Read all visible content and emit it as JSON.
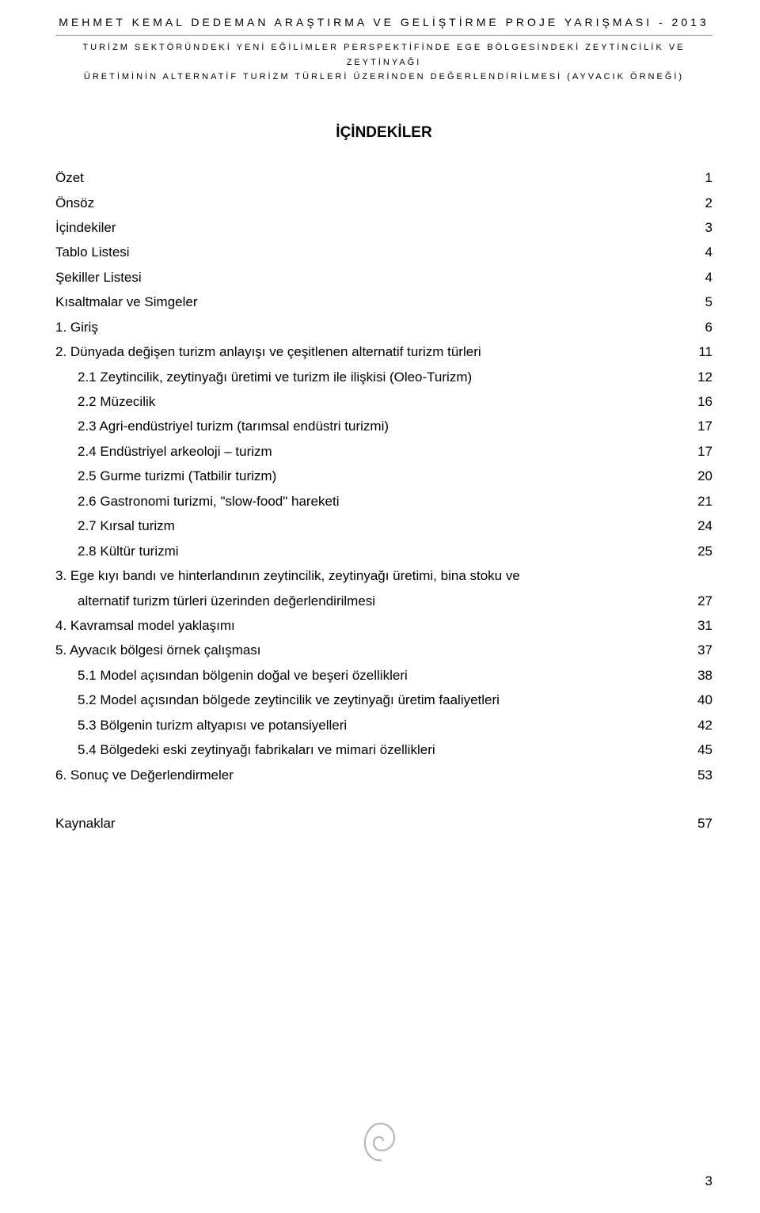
{
  "header": {
    "title": "MEHMET KEMAL DEDEMAN ARAŞTIRMA VE GELİŞTİRME PROJE YARIŞMASI - 2013",
    "subtitle_line1": "TURİZM SEKTÖRÜNDEKİ YENİ EĞİLİMLER PERSPEKTİFİNDE EGE BÖLGESİNDEKİ ZEYTİNCİLİK VE ZEYTİNYAĞI",
    "subtitle_line2": "ÜRETİMİNİN ALTERNATİF TURİZM TÜRLERİ ÜZERİNDEN DEĞERLENDİRİLMESİ (AYVACIK ÖRNEĞİ)"
  },
  "toc_title": "İÇİNDEKİLER",
  "toc": [
    {
      "label": "Özet",
      "page": "1",
      "indent": false
    },
    {
      "label": "Önsöz",
      "page": "2",
      "indent": false
    },
    {
      "label": "İçindekiler",
      "page": "3",
      "indent": false
    },
    {
      "label": "Tablo Listesi",
      "page": "4",
      "indent": false
    },
    {
      "label": "Şekiller Listesi",
      "page": "4",
      "indent": false
    },
    {
      "label": "Kısaltmalar ve Simgeler",
      "page": "5",
      "indent": false
    },
    {
      "label": "1. Giriş",
      "page": "6",
      "indent": false
    },
    {
      "label": "2. Dünyada değişen turizm anlayışı ve çeşitlenen alternatif turizm türleri",
      "page": "11",
      "indent": false
    },
    {
      "label": "2.1 Zeytincilik, zeytinyağı üretimi ve turizm ile ilişkisi (Oleo-Turizm)",
      "page": "12",
      "indent": true
    },
    {
      "label": "2.2 Müzecilik",
      "page": "16",
      "indent": true
    },
    {
      "label": "2.3 Agri-endüstriyel turizm (tarımsal endüstri turizmi)",
      "page": "17",
      "indent": true
    },
    {
      "label": "2.4 Endüstriyel arkeoloji – turizm",
      "page": "17",
      "indent": true
    },
    {
      "label": "2.5 Gurme turizmi (Tatbilir turizm)",
      "page": "20",
      "indent": true
    },
    {
      "label": "2.6 Gastronomi turizmi, \"slow-food\" hareketi",
      "page": "21",
      "indent": true
    },
    {
      "label": "2.7 Kırsal turizm",
      "page": "24",
      "indent": true
    },
    {
      "label": "2.8 Kültür turizmi",
      "page": "25",
      "indent": true
    }
  ],
  "toc_wrap": {
    "line1": "3. Ege kıyı bandı ve hinterlandının zeytincilik, zeytinyağı üretimi, bina stoku ve",
    "line2": "alternatif turizm türleri üzerinden değerlendirilmesi",
    "page": "27"
  },
  "toc2": [
    {
      "label": "4. Kavramsal model yaklaşımı",
      "page": "31",
      "indent": false
    },
    {
      "label": "5. Ayvacık bölgesi örnek çalışması",
      "page": "37",
      "indent": false
    },
    {
      "label": "5.1 Model açısından bölgenin doğal ve beşeri özellikleri",
      "page": "38",
      "indent": true
    },
    {
      "label": "5.2 Model açısından bölgede zeytincilik ve zeytinyağı üretim faaliyetleri",
      "page": "40",
      "indent": true
    },
    {
      "label": "5.3 Bölgenin turizm altyapısı ve potansiyelleri",
      "page": "42",
      "indent": true
    },
    {
      "label": "5.4 Bölgedeki eski zeytinyağı fabrikaları ve mimari özellikleri",
      "page": "45",
      "indent": true
    },
    {
      "label": "6. Sonuç ve Değerlendirmeler",
      "page": "53",
      "indent": false
    }
  ],
  "toc3": [
    {
      "label": "Kaynaklar",
      "page": "57",
      "indent": false
    }
  ],
  "page_number": "3",
  "logo": {
    "stroke": "#b7b7b7",
    "width": 56,
    "height": 62
  }
}
